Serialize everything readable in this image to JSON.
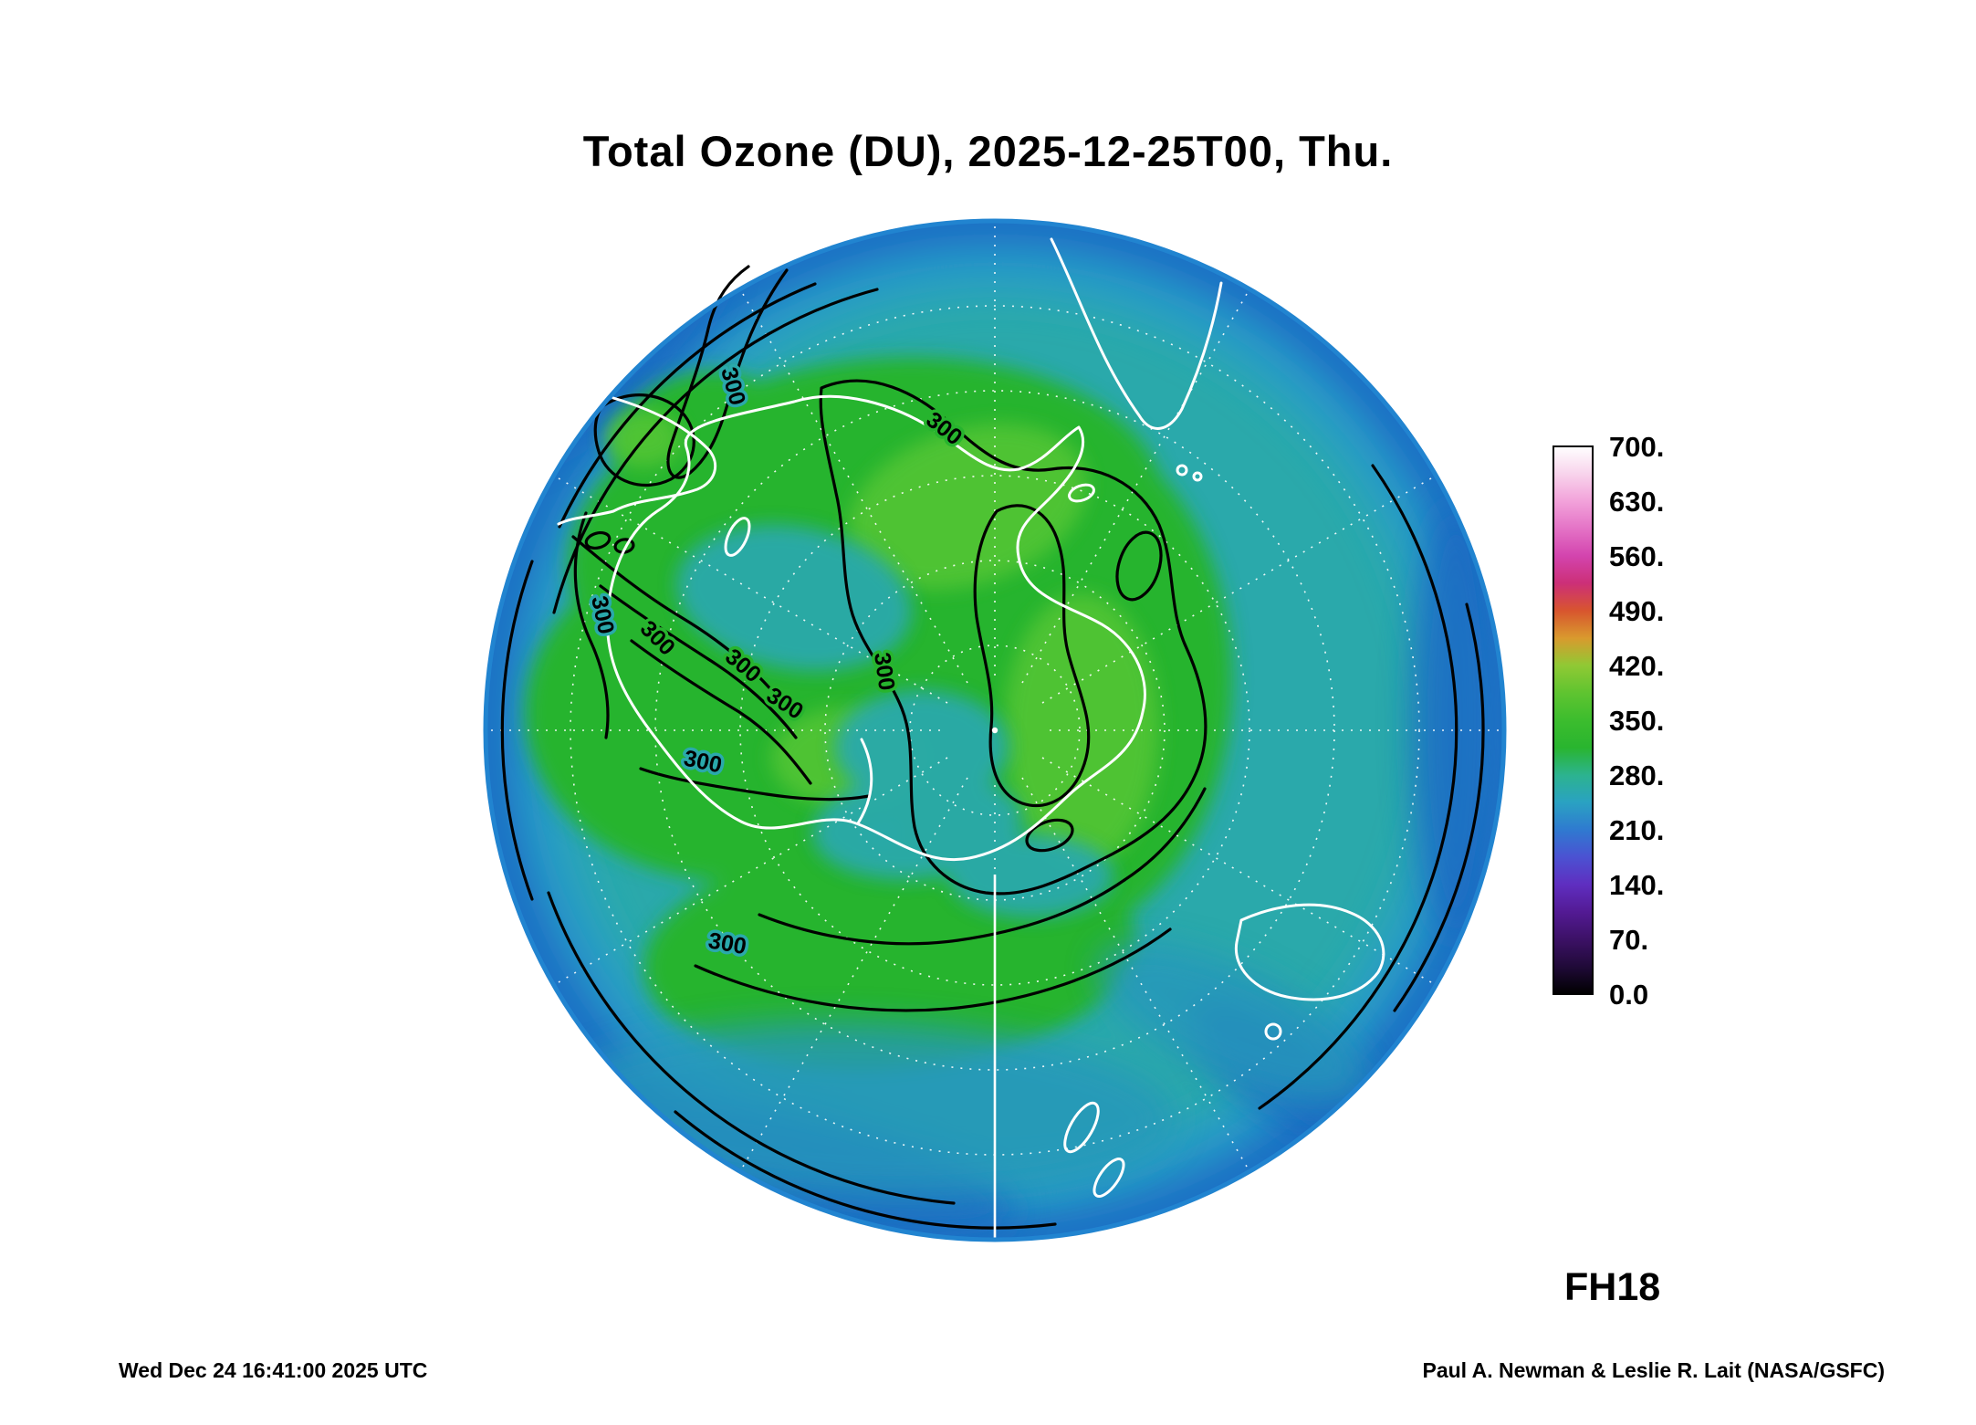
{
  "title": "Total Ozone (DU), 2025-12-25T00, Thu.",
  "annotations": {
    "run_label": "FH18"
  },
  "footer": {
    "timestamp_left": "Wed Dec 24 16:41:00 2025 UTC",
    "credit_right": "Paul A. Newman & Leslie R. Lait (NASA/GSFC)"
  },
  "map": {
    "contour_label": "300",
    "colors": {
      "ocean_teal": "#2aa9ab",
      "rim_blue": "#2184d0",
      "deep_blue": "#1a6cc2",
      "band_cyan": "#2b9fc4",
      "green": "#27b42e",
      "bright_green": "#55c634",
      "teal_patch": "#2aa9ab",
      "lower_teal": "#2597bb",
      "coast_white": "#ffffff",
      "contour_black": "#000000",
      "graticule_white": "#ffffff"
    }
  },
  "chart_data": {
    "type": "heatmap",
    "title": "Total Ozone (DU), 2025-12-25T00, Thu.",
    "variable": "Total Ozone",
    "units": "DU",
    "valid_time": "2025-12-25T00 (Thu)",
    "forecast_hour_label": "FH18",
    "projection": "South polar stereographic, Antarctica at center",
    "colorbar": {
      "min": 0,
      "max": 700,
      "ticks": [
        "700.",
        "630.",
        "560.",
        "490.",
        "420.",
        "350.",
        "280.",
        "210.",
        "140.",
        "70.",
        "0.0"
      ],
      "tick_values": [
        700,
        630,
        560,
        490,
        420,
        350,
        280,
        210,
        140,
        70,
        0
      ],
      "stops": [
        {
          "value": 700,
          "color": "#ffffff"
        },
        {
          "value": 665,
          "color": "#f8d4ec"
        },
        {
          "value": 630,
          "color": "#f2a2da"
        },
        {
          "value": 595,
          "color": "#e473c6"
        },
        {
          "value": 560,
          "color": "#d344ae"
        },
        {
          "value": 525,
          "color": "#cc2f77"
        },
        {
          "value": 490,
          "color": "#d8552e"
        },
        {
          "value": 455,
          "color": "#d99a2e"
        },
        {
          "value": 420,
          "color": "#90c934"
        },
        {
          "value": 385,
          "color": "#5fc430"
        },
        {
          "value": 350,
          "color": "#3cbd2e"
        },
        {
          "value": 315,
          "color": "#29b52f"
        },
        {
          "value": 280,
          "color": "#2cb38f"
        },
        {
          "value": 245,
          "color": "#2aa2c2"
        },
        {
          "value": 210,
          "color": "#2f7ad0"
        },
        {
          "value": 175,
          "color": "#4b52d2"
        },
        {
          "value": 140,
          "color": "#5f2ec0"
        },
        {
          "value": 105,
          "color": "#531a94"
        },
        {
          "value": 70,
          "color": "#3c1166"
        },
        {
          "value": 35,
          "color": "#200a38"
        },
        {
          "value": 0,
          "color": "#000000"
        }
      ]
    },
    "labeled_contours_DU": [
      300
    ],
    "field_summary": {
      "polar_cap": "≈300–340 DU (green area inside the 300-DU contours over and around Antarctica)",
      "midlatitudes": "≈240–290 DU (teal/cyan band)",
      "outer_edge": "≈200–240 DU (blue ring at the equatorward edge of the map)"
    },
    "coastlines_visible": [
      "Antarctica",
      "South America",
      "southern Africa",
      "Australia",
      "New Zealand"
    ]
  }
}
